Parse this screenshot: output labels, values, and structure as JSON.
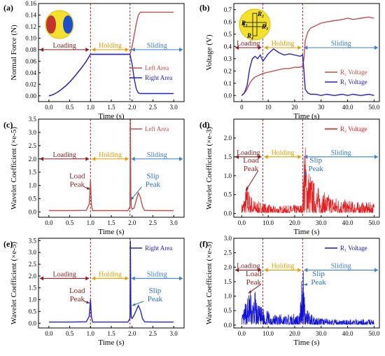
{
  "chart_data": [
    {
      "id": "a",
      "type": "line",
      "panel_label": "(a)",
      "xlabel": "Time (s)",
      "ylabel": "Normal Force (N)",
      "xlim": [
        -0.25,
        3.25
      ],
      "ylim": [
        -0.01,
        0.16
      ],
      "xticks": [
        0.0,
        0.5,
        1.0,
        1.5,
        2.0,
        2.5,
        3.0
      ],
      "xtick_labels": [
        "0.0",
        "0.5",
        "1.0",
        "1.5",
        "2.0",
        "2.5",
        "3.0"
      ],
      "yticks": [
        0.0,
        0.02,
        0.04,
        0.06,
        0.08,
        0.1,
        0.12,
        0.14,
        0.16
      ],
      "ytick_labels": [
        "0.00",
        "0.02",
        "0.04",
        "0.06",
        "0.08",
        "0.10",
        "0.12",
        "0.14",
        "0.16"
      ],
      "phase_lines": [
        1.0,
        1.95
      ],
      "phases": [
        {
          "label": "Loading",
          "x0": -0.25,
          "x1": 1.0,
          "y": 0.08
        },
        {
          "label": "Holding",
          "x0": 1.0,
          "x1": 1.95,
          "y": 0.08
        },
        {
          "label": "Sliding",
          "x0": 1.95,
          "x1": 3.25,
          "y": 0.08
        }
      ],
      "legend": [
        "Left Area",
        "Right Area"
      ],
      "series": [
        {
          "name": "Left Area",
          "color": "#c0504d",
          "x": [
            0,
            0.1,
            0.2,
            0.3,
            0.4,
            0.5,
            0.6,
            0.7,
            0.8,
            0.9,
            1.0,
            1.5,
            1.95,
            2.0,
            2.05,
            2.1,
            2.15,
            2.2,
            2.5,
            3.0
          ],
          "y": [
            0,
            0.002,
            0.006,
            0.011,
            0.017,
            0.024,
            0.032,
            0.041,
            0.05,
            0.06,
            0.072,
            0.072,
            0.072,
            0.085,
            0.105,
            0.125,
            0.14,
            0.145,
            0.145,
            0.145
          ]
        },
        {
          "name": "Right Area",
          "color": "#2323cc",
          "x": [
            0,
            0.1,
            0.2,
            0.3,
            0.4,
            0.5,
            0.6,
            0.7,
            0.8,
            0.9,
            1.0,
            1.5,
            1.95,
            2.0,
            2.05,
            2.1,
            2.15,
            2.2,
            2.5,
            3.0
          ],
          "y": [
            0,
            0.002,
            0.006,
            0.011,
            0.017,
            0.024,
            0.032,
            0.041,
            0.05,
            0.06,
            0.072,
            0.072,
            0.072,
            0.055,
            0.03,
            0.012,
            0.005,
            0.004,
            0.004,
            0.004
          ]
        }
      ]
    },
    {
      "id": "b",
      "type": "line",
      "panel_label": "(b)",
      "xlabel": "Time (s)",
      "ylabel": "Voltage (V)",
      "xlim": [
        -3,
        52
      ],
      "ylim": [
        -0.05,
        0.75
      ],
      "xticks": [
        0,
        10,
        20,
        30,
        40,
        50
      ],
      "xtick_labels": [
        "0",
        "10",
        "20",
        "30",
        "40.0",
        "50.0"
      ],
      "yticks": [
        0.0,
        0.1,
        0.2,
        0.3,
        0.4,
        0.5,
        0.6,
        0.7
      ],
      "ytick_labels": [
        "0.0",
        "0.1",
        "0.2",
        "0.3",
        "0.4",
        "0.5",
        "0.6",
        "0.7"
      ],
      "phase_lines": [
        8,
        23
      ],
      "phases": [
        {
          "label": "Loading",
          "x0": -3,
          "x1": 8,
          "y": 0.39
        },
        {
          "label": "Holding",
          "x0": 8,
          "x1": 23,
          "y": 0.39
        },
        {
          "label": "Sliding",
          "x0": 23,
          "x1": 52,
          "y": 0.39
        }
      ],
      "legend": [
        "R₂ Voltage",
        "R₁ Voltage"
      ],
      "inset_labels": [
        "R₁",
        "R₂",
        "R₃",
        "R₄"
      ],
      "series": [
        {
          "name": "R₂ Voltage",
          "color": "#c0504d",
          "x": [
            0,
            1,
            2,
            3,
            4,
            5,
            6,
            7,
            8,
            10,
            12,
            14,
            16,
            18,
            20,
            22,
            23,
            23.5,
            24,
            25,
            26,
            28,
            30,
            32,
            35,
            38,
            40,
            42,
            45,
            48,
            50
          ],
          "y": [
            0,
            0.02,
            0.05,
            0.1,
            0.13,
            0.15,
            0.16,
            0.17,
            0.18,
            0.19,
            0.2,
            0.21,
            0.22,
            0.22,
            0.23,
            0.23,
            0.24,
            0.3,
            0.45,
            0.52,
            0.55,
            0.57,
            0.59,
            0.6,
            0.61,
            0.62,
            0.63,
            0.62,
            0.63,
            0.64,
            0.63
          ]
        },
        {
          "name": "R₁ Voltage",
          "color": "#2323cc",
          "x": [
            0,
            1,
            2,
            3,
            4,
            5,
            6,
            7,
            8,
            10,
            12,
            14,
            16,
            18,
            20,
            22,
            23,
            23.5,
            24,
            25,
            26,
            28,
            30,
            32,
            35,
            38,
            40,
            42,
            45,
            48,
            50
          ],
          "y": [
            0,
            0.02,
            0.08,
            0.22,
            0.3,
            0.32,
            0.3,
            0.33,
            0.28,
            0.34,
            0.38,
            0.35,
            0.33,
            0.34,
            0.33,
            0.32,
            0.33,
            0.2,
            0.05,
            0.02,
            0.01,
            0.01,
            0.0,
            0.01,
            0.0,
            0.01,
            0.0,
            0.01,
            0.0,
            0.01,
            0.0
          ]
        }
      ]
    },
    {
      "id": "c",
      "type": "line",
      "panel_label": "(c)",
      "xlabel": "Time (s)",
      "ylabel": "Wavelet Coefficient (×e-5)",
      "xlim": [
        -0.25,
        3.25
      ],
      "ylim": [
        -0.2,
        3.5
      ],
      "xticks": [
        0.0,
        0.5,
        1.0,
        1.5,
        2.0,
        2.5,
        3.0
      ],
      "xtick_labels": [
        "0.0",
        "0.5",
        "1.0",
        "1.5",
        "2.0",
        "2.5",
        "3.0"
      ],
      "yticks": [
        0.0,
        0.5,
        1.0,
        1.5,
        2.0,
        2.5,
        3.0,
        3.5
      ],
      "ytick_labels": [
        "0.0",
        "0.5",
        "1.0",
        "1.5",
        "2.0",
        "2.5",
        "3.0",
        "3.5"
      ],
      "phase_lines": [
        1.0,
        1.95
      ],
      "phases": [
        {
          "label": "Loading",
          "x0": -0.25,
          "x1": 1.0,
          "y": 2.0
        },
        {
          "label": "Holding",
          "x0": 1.0,
          "x1": 1.95,
          "y": 2.0
        },
        {
          "label": "Sliding",
          "x0": 1.95,
          "x1": 3.25,
          "y": 2.0
        }
      ],
      "legend": [
        "Left Area"
      ],
      "annotations": [
        {
          "text": [
            "Load",
            "Peak"
          ],
          "x": 0.68,
          "y": 1.05,
          "tip_x": 0.99,
          "tip_y": 0.85
        },
        {
          "text": [
            "Slip",
            "Peak"
          ],
          "x": 2.5,
          "y": 1.05,
          "tip_x": 1.97,
          "tip_y": 0.45
        }
      ],
      "series": [
        {
          "name": "Left Area",
          "color": "#c0504d",
          "x": [
            0,
            0.5,
            0.9,
            0.97,
            1.0,
            1.02,
            1.05,
            1.5,
            1.9,
            1.95,
            1.96,
            1.97,
            1.98,
            2.0,
            2.05,
            2.1,
            2.15,
            2.2,
            2.25,
            2.3,
            2.5,
            3.0
          ],
          "y": [
            0.05,
            0.05,
            0.06,
            0.3,
            1.2,
            0.3,
            0.05,
            0.05,
            0.05,
            0.2,
            3.5,
            0.8,
            0.2,
            0.1,
            0.15,
            0.45,
            0.72,
            0.55,
            0.2,
            0.06,
            0.05,
            0.05
          ]
        }
      ]
    },
    {
      "id": "d",
      "type": "line",
      "panel_label": "(d)",
      "xlabel": "Time (s)",
      "ylabel": "Wavelet Coefficient (×e-3)",
      "xlim": [
        -3,
        52
      ],
      "ylim": [
        -0.1,
        2.5
      ],
      "xticks": [
        0,
        10,
        20,
        30,
        40,
        50
      ],
      "xtick_labels": [
        "0.0",
        "10.0",
        "20.0",
        "30.0",
        "40.0",
        "50.0"
      ],
      "yticks": [
        0.0,
        0.5,
        1.0,
        1.5,
        2.0
      ],
      "ytick_labels": [
        "0.0",
        "0.5",
        "1.0",
        "1.5",
        "2.0"
      ],
      "phase_lines": [
        8,
        23
      ],
      "phases": [
        {
          "label": "Loading",
          "x0": -3,
          "x1": 8,
          "y": 1.5
        },
        {
          "label": "Holding",
          "x0": 8,
          "x1": 23,
          "y": 1.5
        },
        {
          "label": "Sliding",
          "x0": 23,
          "x1": 52,
          "y": 1.5
        }
      ],
      "legend": [
        "R₂ Voltage"
      ],
      "annotations": [
        {
          "text": [
            "Load",
            "Peak"
          ],
          "x": 3.5,
          "y": 1.2,
          "tip_x": 1.5,
          "tip_y": 0.6
        },
        {
          "text": [
            "Slip",
            "Peak"
          ],
          "x": 28,
          "y": 1.2,
          "tip_x": 24.5,
          "tip_y": 1.0
        }
      ],
      "noise": {
        "color": "#e41a1c",
        "seed": 7,
        "count": 700,
        "envelope": [
          [
            0,
            0.25
          ],
          [
            1,
            0.5
          ],
          [
            2,
            0.85
          ],
          [
            3,
            0.55
          ],
          [
            5,
            0.35
          ],
          [
            8,
            0.3
          ],
          [
            12,
            0.2
          ],
          [
            18,
            0.22
          ],
          [
            23,
            0.25
          ],
          [
            23.5,
            2.2
          ],
          [
            25,
            1.3
          ],
          [
            27,
            0.9
          ],
          [
            30,
            0.6
          ],
          [
            35,
            0.45
          ],
          [
            40,
            0.35
          ],
          [
            45,
            0.3
          ],
          [
            50,
            0.3
          ]
        ]
      }
    },
    {
      "id": "e",
      "type": "line",
      "panel_label": "(e)",
      "xlabel": "Time (s)",
      "ylabel": "Wavelet Coefficient (×e-5)",
      "xlim": [
        -0.25,
        3.25
      ],
      "ylim": [
        -0.2,
        3.6
      ],
      "xticks": [
        0.0,
        0.5,
        1.0,
        1.5,
        2.0,
        2.5,
        3.0
      ],
      "xtick_labels": [
        "0.0",
        "0.5",
        "1.0",
        "1.5",
        "2.0",
        "2.5",
        "3.0"
      ],
      "yticks": [
        0.0,
        0.5,
        1.0,
        1.5,
        2.0,
        2.5,
        3.0,
        3.5
      ],
      "ytick_labels": [
        "0.0",
        "0.5",
        "1.0",
        "1.5",
        "2.0",
        "2.5",
        "3.0",
        "3.5"
      ],
      "phase_lines": [
        1.0,
        1.95
      ],
      "phases": [
        {
          "label": "Loading",
          "x0": -0.25,
          "x1": 1.0,
          "y": 1.9
        },
        {
          "label": "Holding",
          "x0": 1.0,
          "x1": 1.95,
          "y": 1.9
        },
        {
          "label": "Sliding",
          "x0": 1.95,
          "x1": 3.25,
          "y": 1.9
        }
      ],
      "legend": [
        "Right Area"
      ],
      "annotations": [
        {
          "text": [
            "Load",
            "Peak"
          ],
          "x": 0.68,
          "y": 1.05,
          "tip_x": 0.98,
          "tip_y": 0.85
        },
        {
          "text": [
            "Slip",
            "Peak"
          ],
          "x": 2.55,
          "y": 1.05,
          "tip_x": 2.0,
          "tip_y": 0.75
        }
      ],
      "series": [
        {
          "name": "Right Area",
          "color": "#2323cc",
          "x": [
            0,
            0.5,
            0.9,
            0.97,
            1.0,
            1.02,
            1.05,
            1.5,
            1.9,
            1.95,
            1.96,
            1.97,
            1.98,
            2.0,
            2.05,
            2.1,
            2.15,
            2.2,
            2.25,
            2.3,
            2.5,
            3.0
          ],
          "y": [
            0.05,
            0.05,
            0.06,
            0.3,
            1.0,
            0.3,
            0.05,
            0.05,
            0.05,
            0.2,
            3.5,
            0.9,
            0.25,
            0.2,
            0.35,
            0.55,
            0.75,
            0.55,
            0.2,
            0.06,
            0.05,
            0.05
          ]
        }
      ]
    },
    {
      "id": "f",
      "type": "line",
      "panel_label": "(f)",
      "xlabel": "Time (s)",
      "ylabel": "Wavelet Coefficient (×e-3)",
      "xlim": [
        -3,
        52
      ],
      "ylim": [
        -0.1,
        3.0
      ],
      "xticks": [
        0,
        10,
        20,
        30,
        40,
        50
      ],
      "xtick_labels": [
        "0.0",
        "10.0",
        "20.0",
        "30.0",
        "40.0",
        "50.0"
      ],
      "yticks": [
        0.0,
        0.5,
        1.0,
        1.5,
        2.0,
        2.5,
        3.0
      ],
      "ytick_labels": [
        "0.0",
        "0.5",
        "1.0",
        "1.5",
        "2.0",
        "2.5",
        "3.0"
      ],
      "phase_lines": [
        8,
        23
      ],
      "phases": [
        {
          "label": "Loading",
          "x0": -3,
          "x1": 8,
          "y": 1.9
        },
        {
          "label": "Holding",
          "x0": 8,
          "x1": 23,
          "y": 1.9
        },
        {
          "label": "Sliding",
          "x0": 23,
          "x1": 52,
          "y": 1.9
        }
      ],
      "legend": [
        "R₁ Voltage"
      ],
      "annotations": [
        {
          "text": [
            "Load",
            "Peak"
          ],
          "x": 4.5,
          "y": 1.5,
          "tip_x": 2.5,
          "tip_y": 1.1
        },
        {
          "text": [
            "Slip",
            "Peak"
          ],
          "x": 29,
          "y": 1.5,
          "tip_x": 23.5,
          "tip_y": 1.4
        }
      ],
      "noise": {
        "color": "#1010dd",
        "seed": 13,
        "count": 700,
        "envelope": [
          [
            0,
            0.3
          ],
          [
            2,
            1.0
          ],
          [
            3,
            1.35
          ],
          [
            4,
            0.9
          ],
          [
            5,
            1.2
          ],
          [
            6,
            0.7
          ],
          [
            8,
            0.6
          ],
          [
            12,
            0.4
          ],
          [
            18,
            0.35
          ],
          [
            22,
            0.45
          ],
          [
            23,
            2.9
          ],
          [
            24,
            0.6
          ],
          [
            26,
            0.4
          ],
          [
            30,
            0.25
          ],
          [
            35,
            0.2
          ],
          [
            40,
            0.2
          ],
          [
            45,
            0.2
          ],
          [
            50,
            0.2
          ]
        ]
      }
    }
  ]
}
